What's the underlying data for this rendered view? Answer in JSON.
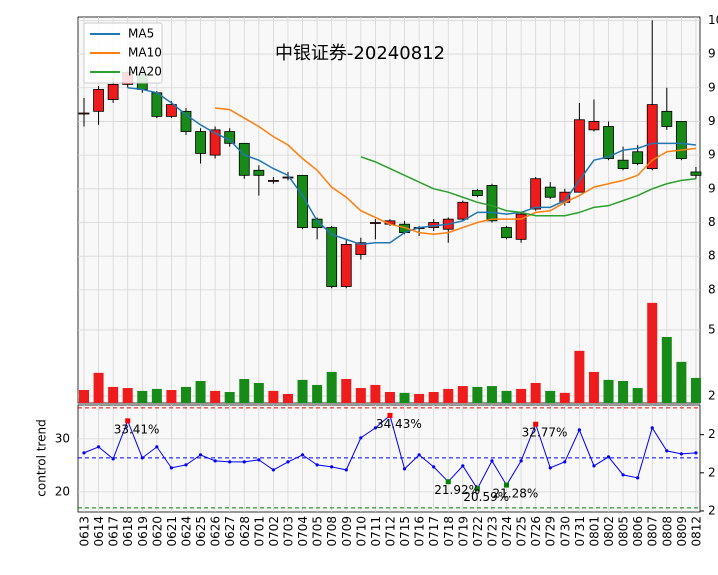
{
  "chart_data": [
    {
      "type": "candlestick",
      "title": "中银证券-20240812",
      "open": [
        9.45,
        9.46,
        9.53,
        9.62,
        9.68,
        9.57,
        9.43,
        9.46,
        9.34,
        9.2,
        9.34,
        9.27,
        9.11,
        9.05,
        9.07,
        9.08,
        8.82,
        8.77,
        8.42,
        8.61,
        8.8,
        8.79,
        8.79,
        8.77,
        8.77,
        8.76,
        8.82,
        8.99,
        9.02,
        8.77,
        8.7,
        8.88,
        9.01,
        8.92,
        8.98,
        9.35,
        9.37,
        9.17,
        9.22,
        9.12,
        9.46,
        9.4,
        9.1
      ],
      "close": [
        9.45,
        9.59,
        9.62,
        9.69,
        9.59,
        9.43,
        9.5,
        9.34,
        9.21,
        9.35,
        9.27,
        9.08,
        9.08,
        9.05,
        9.07,
        8.77,
        8.77,
        8.42,
        8.67,
        8.68,
        8.8,
        8.81,
        8.74,
        8.77,
        8.8,
        8.82,
        8.92,
        8.96,
        8.81,
        8.71,
        8.85,
        9.06,
        8.95,
        8.98,
        9.41,
        9.4,
        9.18,
        9.12,
        9.15,
        9.5,
        9.37,
        9.18,
        9.08
      ],
      "high": [
        9.54,
        9.61,
        9.66,
        9.7,
        9.7,
        9.58,
        9.52,
        9.48,
        9.36,
        9.37,
        9.36,
        9.27,
        9.14,
        9.07,
        9.1,
        9.08,
        8.83,
        8.78,
        8.7,
        8.71,
        8.82,
        8.82,
        8.81,
        8.78,
        8.82,
        8.83,
        8.93,
        9.0,
        9.03,
        8.78,
        8.86,
        9.07,
        9.04,
        9.0,
        9.51,
        9.53,
        9.4,
        9.25,
        9.26,
        10.0,
        9.6,
        9.4,
        9.13
      ],
      "low": [
        9.37,
        9.38,
        9.51,
        9.6,
        9.57,
        9.42,
        9.42,
        9.32,
        9.15,
        9.18,
        9.25,
        9.06,
        8.96,
        9.03,
        9.05,
        8.76,
        8.7,
        8.41,
        8.41,
        8.58,
        8.7,
        8.78,
        8.73,
        8.72,
        8.75,
        8.68,
        8.81,
        8.95,
        8.8,
        8.7,
        8.68,
        8.87,
        8.94,
        8.9,
        8.98,
        9.34,
        9.17,
        9.11,
        9.14,
        9.11,
        9.35,
        9.17,
        9.06
      ],
      "up_color": "#ee1c1c",
      "down_color": "#178a17",
      "series": [
        {
          "name": "MA5",
          "color": "#1f77b4",
          "values": [
            null,
            null,
            null,
            9.6,
            9.59,
            9.57,
            9.51,
            9.44,
            9.38,
            9.33,
            9.29,
            9.2,
            9.17,
            9.12,
            9.08,
            8.96,
            8.81,
            8.73,
            8.7,
            8.67,
            8.68,
            8.68,
            8.74,
            8.77,
            8.78,
            8.79,
            8.81,
            8.86,
            8.86,
            8.85,
            8.86,
            8.89,
            8.89,
            8.93,
            9.05,
            9.17,
            9.19,
            9.23,
            9.24,
            9.27,
            9.27,
            9.27,
            9.26
          ]
        },
        {
          "name": "MA10",
          "color": "#ff7f0e",
          "values": [
            null,
            null,
            null,
            null,
            null,
            null,
            null,
            null,
            null,
            9.48,
            9.47,
            9.42,
            9.37,
            9.31,
            9.26,
            9.18,
            9.11,
            9.01,
            8.95,
            8.87,
            8.83,
            8.79,
            8.77,
            8.74,
            8.73,
            8.74,
            8.77,
            8.8,
            8.82,
            8.82,
            8.82,
            8.86,
            8.87,
            8.92,
            8.96,
            9.01,
            9.03,
            9.05,
            9.08,
            9.17,
            9.22,
            9.23,
            9.24
          ]
        },
        {
          "name": "MA20",
          "color": "#2ca02c",
          "values": [
            null,
            null,
            null,
            null,
            null,
            null,
            null,
            null,
            null,
            null,
            null,
            null,
            null,
            null,
            null,
            null,
            null,
            null,
            null,
            9.19,
            9.16,
            9.12,
            9.08,
            9.04,
            9.0,
            8.98,
            8.95,
            8.92,
            8.9,
            8.87,
            8.86,
            8.84,
            8.84,
            8.84,
            8.86,
            8.89,
            8.9,
            8.93,
            8.96,
            9.0,
            9.03,
            9.05,
            9.06
          ]
        }
      ],
      "legend": "upper left",
      "grid": true,
      "ylim": [
        8.34,
        10.02
      ],
      "yticks": [
        {
          "value": 8.4,
          "label": "8"
        },
        {
          "value": 8.6,
          "label": "8"
        },
        {
          "value": 8.8,
          "label": "8"
        },
        9,
        {
          "value": 9.2,
          "label": "9"
        },
        {
          "value": 9.4,
          "label": "9"
        },
        {
          "value": 9.6,
          "label": "9"
        },
        {
          "value": 9.8,
          "label": "9"
        },
        10
      ]
    },
    {
      "type": "bar",
      "values": [
        2.27,
        3.05,
        2.41,
        2.36,
        2.23,
        2.32,
        2.27,
        2.41,
        2.68,
        2.23,
        2.18,
        2.77,
        2.59,
        2.23,
        2.09,
        2.73,
        2.5,
        3.09,
        2.77,
        2.36,
        2.5,
        2.18,
        2.14,
        2.09,
        2.18,
        2.32,
        2.45,
        2.41,
        2.45,
        2.23,
        2.32,
        2.59,
        2.23,
        2.14,
        4.05,
        3.09,
        2.73,
        2.68,
        2.36,
        6.23,
        4.68,
        3.55,
        2.82
      ],
      "ylim": [
        1.68,
        6.36
      ],
      "yticks": [
        2,
        5
      ],
      "grid": true
    },
    {
      "type": "line",
      "ylabel": "control trend",
      "categories": [
        "0613",
        "0614",
        "0617",
        "0618",
        "0619",
        "0620",
        "0621",
        "0624",
        "0625",
        "0626",
        "0627",
        "0628",
        "0701",
        "0702",
        "0703",
        "0704",
        "0705",
        "0708",
        "0709",
        "0710",
        "0711",
        "0712",
        "0715",
        "0716",
        "0717",
        "0718",
        "0719",
        "0722",
        "0723",
        "0724",
        "0725",
        "0726",
        "0729",
        "0730",
        "0731",
        "0801",
        "0802",
        "0805",
        "0806",
        "0807",
        "0808",
        "0809",
        "0812"
      ],
      "series": [
        {
          "color": "#0000ff",
          "values": [
            27.36,
            28.49,
            26.23,
            33.41,
            26.42,
            28.49,
            24.53,
            25.09,
            26.98,
            25.85,
            25.66,
            25.66,
            26.04,
            24.15,
            25.66,
            26.98,
            25.09,
            24.72,
            24.15,
            30.19,
            32.08,
            34.43,
            24.34,
            26.98,
            24.72,
            21.92,
            24.91,
            20.59,
            25.85,
            21.28,
            25.85,
            32.77,
            24.53,
            25.66,
            31.7,
            24.91,
            26.6,
            23.21,
            22.64,
            32.08,
            27.74,
            27.17,
            27.36
          ],
          "value_labels": [
            null,
            null,
            null,
            "33.41%",
            null,
            null,
            null,
            null,
            null,
            null,
            null,
            null,
            null,
            null,
            null,
            null,
            null,
            null,
            null,
            null,
            null,
            "34.43%",
            null,
            null,
            null,
            "21.92%",
            null,
            "20.59%",
            null,
            "21.28%",
            null,
            "32.77%",
            null,
            null,
            null,
            null,
            null,
            null,
            null,
            null,
            null,
            null,
            null
          ]
        }
      ],
      "hlines": [
        {
          "value": 35.85,
          "color": "#ff0000"
        },
        {
          "value": 26.42,
          "color": "#0000ff"
        },
        {
          "value": 16.98,
          "color": "#008000"
        }
      ],
      "ylim": [
        16.2,
        36.4
      ],
      "yticks": [
        20,
        30
      ],
      "y2lim": [
        16.2,
        36.4
      ],
      "y2ticks": [
        {
          "value": 30.8,
          "label": "2"
        },
        {
          "value": 23.6,
          "label": "2"
        },
        {
          "value": 16.4,
          "label": "2"
        }
      ],
      "grid": true
    }
  ]
}
